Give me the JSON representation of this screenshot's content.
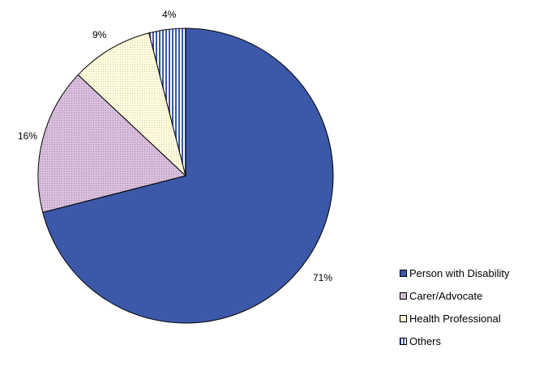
{
  "chart_data": {
    "type": "pie",
    "title": "",
    "start_angle_deg": 0,
    "direction": "clockwise",
    "legend_position": "bottom-right",
    "slices": [
      {
        "name": "Person with Disability",
        "value": 71,
        "label": "71%",
        "color": "#3c58a8",
        "pattern": "solid"
      },
      {
        "name": "Carer/Advocate",
        "value": 16,
        "label": "16%",
        "color": "#d8c0dc",
        "pattern": "dotted"
      },
      {
        "name": "Health Professional",
        "value": 9,
        "label": "9%",
        "color": "#fffbe0",
        "pattern": "dotted"
      },
      {
        "name": "Others",
        "value": 4,
        "label": "4%",
        "color": "#3c58a8",
        "pattern": "vertical-stripes"
      }
    ]
  }
}
